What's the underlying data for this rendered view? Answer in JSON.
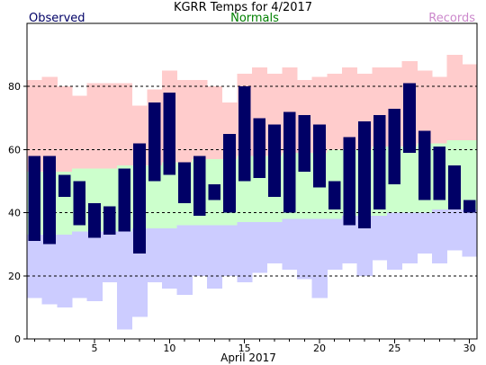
{
  "chart_data": {
    "type": "bar",
    "title": "KGRR Temps for 4/2017",
    "legend": [
      {
        "label": "Observed",
        "color": "#000066",
        "position": "top-left"
      },
      {
        "label": "Normals",
        "color": "#008000",
        "position": "top-center"
      },
      {
        "label": "Records",
        "color": "#cc88cc",
        "position": "top-right"
      }
    ],
    "xlabel": "April 2017",
    "ylabel": "",
    "x_ticks": [
      5,
      10,
      15,
      20,
      25,
      30
    ],
    "y_ticks": [
      0,
      20,
      40,
      60,
      80
    ],
    "ylim": [
      0,
      100
    ],
    "xlim": [
      0.5,
      30.5
    ],
    "grid": "dashed horizontal at 20, 40, 60, 80",
    "colors": {
      "record_high_band": "#ffcccc",
      "normal_band": "#ccffcc",
      "record_low_band": "#ccccff",
      "observed_bar": "#000066"
    },
    "days": [
      1,
      2,
      3,
      4,
      5,
      6,
      7,
      8,
      9,
      10,
      11,
      12,
      13,
      14,
      15,
      16,
      17,
      18,
      19,
      20,
      21,
      22,
      23,
      24,
      25,
      26,
      27,
      28,
      29,
      30
    ],
    "record_high": [
      82,
      83,
      80,
      77,
      81,
      81,
      81,
      74,
      79,
      85,
      82,
      82,
      80,
      75,
      84,
      86,
      84,
      86,
      82,
      83,
      84,
      86,
      84,
      86,
      86,
      88,
      85,
      83,
      90,
      87
    ],
    "normal_high": [
      53,
      53,
      53,
      54,
      54,
      54,
      55,
      55,
      55,
      56,
      56,
      57,
      57,
      57,
      58,
      58,
      58,
      59,
      59,
      59,
      60,
      60,
      60,
      61,
      61,
      61,
      62,
      62,
      63,
      63
    ],
    "normal_low": [
      33,
      33,
      33,
      34,
      34,
      34,
      34,
      35,
      35,
      35,
      36,
      36,
      36,
      36,
      37,
      37,
      37,
      38,
      38,
      38,
      38,
      39,
      39,
      39,
      40,
      40,
      40,
      41,
      41,
      41
    ],
    "record_low": [
      13,
      11,
      10,
      13,
      12,
      18,
      3,
      7,
      18,
      16,
      14,
      20,
      16,
      20,
      18,
      21,
      24,
      22,
      19,
      13,
      22,
      24,
      20,
      25,
      22,
      24,
      27,
      24,
      28,
      26
    ],
    "observed_high": [
      58,
      58,
      52,
      50,
      43,
      42,
      54,
      62,
      75,
      78,
      56,
      58,
      49,
      65,
      80,
      70,
      68,
      72,
      71,
      68,
      50,
      64,
      69,
      71,
      73,
      81,
      66,
      61,
      55,
      44
    ],
    "observed_low": [
      31,
      30,
      45,
      36,
      32,
      33,
      34,
      27,
      50,
      52,
      43,
      39,
      44,
      40,
      50,
      51,
      45,
      40,
      53,
      48,
      41,
      36,
      35,
      41,
      49,
      59,
      44,
      44,
      41,
      40
    ]
  }
}
